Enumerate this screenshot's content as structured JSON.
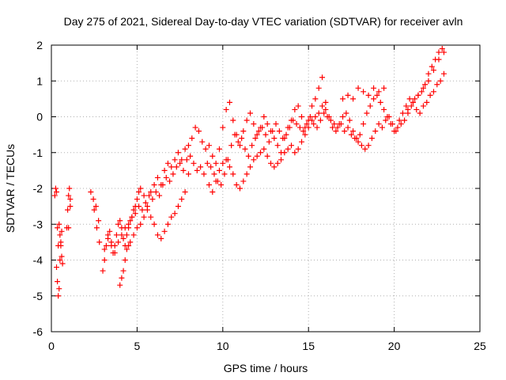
{
  "chart_data": {
    "type": "scatter",
    "title": "Day 275 of 2021, Sidereal Day-to-day VTEC variation (SDTVAR) for receiver avln",
    "xlabel": "GPS time / hours",
    "ylabel": "SDTVAR / TECUs",
    "xlim": [
      0,
      25
    ],
    "ylim": [
      -6,
      2
    ],
    "xticks": [
      "0",
      "5",
      "10",
      "15",
      "20",
      "25"
    ],
    "yticks": [
      "-6",
      "-5",
      "-4",
      "-3",
      "-2",
      "-1",
      "0",
      "1",
      "2"
    ],
    "grid": true,
    "marker": "plus",
    "color": "#ff0000",
    "series": [
      {
        "name": "SDTVAR",
        "x": [
          0.2,
          0.25,
          0.3,
          0.35,
          0.4,
          0.3,
          0.35,
          0.4,
          0.45,
          0.5,
          0.55,
          0.6,
          0.45,
          0.5,
          0.55,
          0.6,
          0.65,
          0.9,
          0.95,
          1.0,
          1.05,
          1.1,
          1.0,
          1.1,
          2.3,
          2.45,
          2.6,
          2.75,
          2.5,
          2.65,
          2.8,
          3.0,
          3.1,
          3.2,
          3.3,
          3.4,
          3.5,
          3.6,
          3.7,
          3.8,
          3.9,
          4.0,
          4.1,
          4.2,
          4.3,
          4.4,
          4.5,
          4.6,
          4.7,
          4.8,
          4.9,
          5.0,
          5.1,
          5.2,
          5.4,
          5.6,
          5.8,
          6.0,
          6.2,
          6.4,
          6.6,
          6.8,
          7.0,
          7.2,
          7.4,
          7.6,
          7.8,
          8.0,
          8.2,
          8.4,
          8.6,
          8.8,
          9.0,
          9.2,
          9.4,
          9.6,
          9.8,
          10.0,
          10.2,
          10.4,
          10.6,
          10.8,
          11.0,
          11.2,
          11.4,
          11.6,
          11.8,
          12.0,
          12.2,
          12.4,
          12.6,
          12.8,
          13.0,
          13.2,
          13.4,
          13.6,
          13.8,
          14.0,
          14.2,
          14.4,
          14.6,
          14.8,
          15.0,
          15.2,
          15.4,
          15.6,
          15.8,
          16.0,
          16.2,
          16.4,
          16.6,
          16.8,
          17.0,
          17.2,
          17.4,
          17.6,
          17.8,
          18.0,
          18.2,
          18.4,
          18.6,
          18.8,
          19.0,
          19.2,
          19.4,
          19.6,
          19.8,
          20.0,
          20.2,
          20.4,
          20.6,
          20.8,
          21.0,
          21.2,
          21.4,
          21.6,
          21.8,
          22.0,
          22.2,
          22.4,
          22.6,
          22.8,
          3.1,
          3.3,
          3.5,
          3.7,
          3.9,
          4.1,
          4.3,
          4.5,
          4.7,
          4.9,
          5.1,
          5.3,
          5.5,
          5.7,
          5.9,
          6.1,
          6.3,
          6.5,
          6.7,
          6.9,
          7.1,
          7.3,
          7.5,
          7.7,
          7.9,
          8.1,
          8.3,
          8.5,
          8.7,
          8.9,
          9.1,
          9.3,
          9.5,
          9.7,
          9.9,
          10.1,
          10.3,
          10.5,
          10.7,
          10.9,
          11.1,
          11.3,
          11.5,
          11.7,
          11.9,
          12.1,
          12.3,
          12.5,
          12.7,
          12.9,
          13.1,
          13.3,
          13.5,
          13.7,
          13.9,
          14.1,
          14.3,
          14.5,
          14.7,
          14.9,
          15.1,
          15.3,
          15.5,
          15.7,
          15.9,
          16.1,
          16.3,
          16.5,
          16.7,
          16.9,
          17.1,
          17.3,
          17.5,
          17.7,
          17.9,
          18.1,
          18.3,
          18.5,
          18.7,
          18.9,
          19.1,
          19.3,
          19.5,
          19.7,
          19.9,
          20.1,
          20.3,
          20.5,
          20.7,
          20.9,
          21.1,
          21.3,
          21.5,
          21.7,
          21.9,
          22.1,
          22.3,
          22.5,
          22.7,
          22.9,
          4.0,
          4.1,
          4.2,
          4.3,
          4.4,
          4.5,
          4.6,
          4.8,
          5.0,
          5.2,
          5.4,
          5.6,
          5.8,
          6.0,
          6.2,
          6.4,
          6.6,
          6.8,
          7.0,
          7.2,
          7.4,
          7.6,
          7.8,
          8.0,
          9.2,
          9.4,
          9.6,
          9.8,
          10.0,
          10.2,
          10.4,
          10.6,
          10.8,
          11.0,
          11.2,
          11.4,
          11.6,
          11.8,
          12.0,
          12.2,
          12.4,
          12.6,
          12.8,
          13.0,
          13.2,
          13.4,
          13.6,
          13.8,
          14.0,
          14.2,
          14.4,
          14.6,
          14.8,
          15.0,
          15.2,
          15.4,
          15.6,
          15.8,
          16.0,
          17.0,
          17.3,
          17.6,
          17.9,
          18.2,
          18.5,
          18.8,
          19.1,
          19.4,
          20.8,
          21.1,
          21.4,
          21.7,
          22.0,
          22.3,
          22.6,
          22.9
        ],
        "y": [
          -2.2,
          -2.0,
          -2.1,
          -3.1,
          -3.6,
          -4.2,
          -4.6,
          -5.0,
          -4.8,
          -4.0,
          -3.5,
          -3.2,
          -3.0,
          -3.3,
          -3.6,
          -3.9,
          -4.1,
          -3.1,
          -2.6,
          -2.2,
          -2.0,
          -2.3,
          -3.1,
          -2.5,
          -2.1,
          -2.3,
          -2.5,
          -2.9,
          -2.6,
          -3.1,
          -3.5,
          -4.3,
          -4.0,
          -3.6,
          -3.3,
          -3.2,
          -3.5,
          -3.8,
          -3.6,
          -3.3,
          -3.0,
          -2.9,
          -3.1,
          -3.4,
          -3.6,
          -3.3,
          -3.1,
          -2.9,
          -2.8,
          -2.6,
          -2.5,
          -2.3,
          -2.1,
          -2.0,
          -2.2,
          -2.5,
          -2.1,
          -1.9,
          -1.7,
          -1.9,
          -1.5,
          -1.3,
          -1.4,
          -1.2,
          -1.0,
          -1.2,
          -0.9,
          -0.8,
          -0.6,
          -0.3,
          -0.4,
          -0.7,
          -0.9,
          -0.8,
          -1.1,
          -1.3,
          -0.9,
          -0.3,
          0.2,
          0.4,
          -0.1,
          -0.5,
          -0.8,
          -0.4,
          -0.1,
          0.1,
          -0.2,
          -0.5,
          -0.3,
          0.0,
          -0.2,
          -0.4,
          -0.6,
          -0.8,
          -1.0,
          -0.6,
          -0.3,
          -0.1,
          0.2,
          0.3,
          0.0,
          -0.3,
          -0.1,
          0.3,
          0.5,
          0.8,
          1.1,
          0.4,
          0.0,
          -0.3,
          -0.4,
          -0.2,
          0.0,
          0.1,
          -0.1,
          -0.4,
          -0.6,
          -0.5,
          -0.2,
          0.1,
          0.3,
          0.5,
          0.6,
          0.4,
          0.2,
          0.0,
          -0.2,
          -0.4,
          -0.3,
          -0.2,
          -0.1,
          0.1,
          0.3,
          0.5,
          0.6,
          0.7,
          0.9,
          1.2,
          1.4,
          1.6,
          1.8,
          1.9,
          -3.7,
          -3.4,
          -3.6,
          -3.8,
          -3.5,
          -3.3,
          -3.1,
          -3.0,
          -2.8,
          -2.7,
          -2.5,
          -2.6,
          -2.4,
          -2.2,
          -2.3,
          -2.1,
          -2.2,
          -1.9,
          -1.7,
          -1.8,
          -1.6,
          -1.4,
          -1.3,
          -1.5,
          -1.2,
          -1.1,
          -1.3,
          -1.5,
          -1.4,
          -1.6,
          -1.3,
          -1.4,
          -1.6,
          -1.8,
          -1.9,
          -1.6,
          -1.2,
          -0.8,
          -0.5,
          -0.7,
          -0.6,
          -0.9,
          -1.1,
          -0.8,
          -0.6,
          -0.4,
          -0.3,
          -0.5,
          -0.7,
          -0.4,
          -0.2,
          -0.4,
          -0.6,
          -0.5,
          -0.3,
          -0.1,
          -0.2,
          -0.3,
          -0.4,
          -0.2,
          0.0,
          -0.2,
          -0.3,
          -0.1,
          0.1,
          0.0,
          -0.1,
          -0.2,
          -0.3,
          -0.2,
          -0.4,
          -0.3,
          -0.5,
          -0.6,
          -0.7,
          -0.8,
          -0.9,
          -0.8,
          -0.6,
          -0.4,
          -0.2,
          -0.3,
          -0.1,
          0.0,
          -0.2,
          -0.4,
          -0.1,
          0.1,
          0.3,
          0.5,
          0.4,
          0.2,
          0.1,
          0.3,
          0.4,
          0.6,
          0.7,
          0.9,
          1.0,
          1.2,
          -4.7,
          -4.5,
          -4.3,
          -4.0,
          -3.7,
          -3.6,
          -3.5,
          -3.3,
          -3.1,
          -3.0,
          -2.8,
          -2.6,
          -2.8,
          -3.0,
          -3.3,
          -3.4,
          -3.2,
          -3.0,
          -2.8,
          -2.7,
          -2.5,
          -2.3,
          -2.1,
          -1.6,
          -1.9,
          -2.1,
          -1.8,
          -1.5,
          -1.3,
          -1.2,
          -1.4,
          -1.6,
          -1.9,
          -2.0,
          -1.8,
          -1.6,
          -1.4,
          -1.2,
          -1.1,
          -1.0,
          -0.9,
          -1.1,
          -1.3,
          -1.4,
          -1.3,
          -1.2,
          -1.0,
          -0.9,
          -0.8,
          -1.0,
          -0.9,
          -0.7,
          -0.5,
          -0.3,
          -0.1,
          0.0,
          0.1,
          0.3,
          0.2,
          0.5,
          0.6,
          0.5,
          0.8,
          0.7,
          0.6,
          0.8,
          0.7,
          0.8,
          0.2,
          0.4,
          0.6,
          0.8,
          1.0,
          1.3,
          1.6,
          1.8
        ]
      }
    ]
  }
}
